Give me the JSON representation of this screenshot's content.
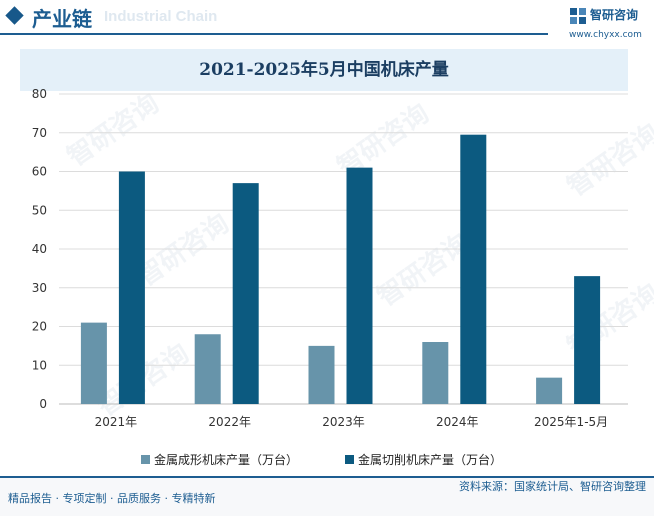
{
  "header": {
    "title": "产业链",
    "subtitle": "Industrial Chain"
  },
  "brand": {
    "name": "智研咨询",
    "url": "www.chyxx.com",
    "color": "#1d5d91"
  },
  "chart_data": {
    "type": "bar",
    "title": "2021-2025年5月中国机床产量",
    "categories": [
      "2021年",
      "2022年",
      "2023年",
      "2024年",
      "2025年1-5月"
    ],
    "series": [
      {
        "name": "金属成形机床产量（万台）",
        "values": [
          21,
          18,
          15,
          16,
          6.8
        ],
        "color": "#6794aa"
      },
      {
        "name": "金属切削机床产量（万台）",
        "values": [
          60,
          57,
          61,
          69.5,
          33
        ],
        "color": "#0c5a80"
      }
    ],
    "ylim": [
      0,
      80
    ],
    "yticks": [
      0,
      10,
      20,
      30,
      40,
      50,
      60,
      70,
      80
    ],
    "grid": true,
    "legend_position": "bottom"
  },
  "footer": {
    "left": "精品报告 · 专项定制 · 品质服务 · 专精特新",
    "source": "资料来源：国家统计局、智研咨询整理"
  },
  "watermark": "智研咨询"
}
